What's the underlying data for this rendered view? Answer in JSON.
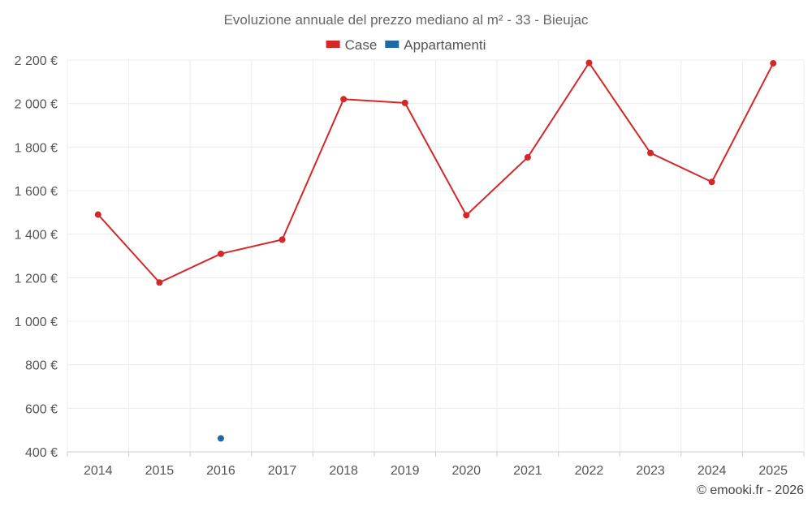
{
  "chart_data": {
    "type": "line",
    "title": "Evoluzione annuale del prezzo mediano al m² - 33 - Bieujac",
    "categories": [
      "2014",
      "2015",
      "2016",
      "2017",
      "2018",
      "2019",
      "2020",
      "2021",
      "2022",
      "2023",
      "2024",
      "2025"
    ],
    "series": [
      {
        "name": "Case",
        "color": "#d62728",
        "values": [
          1490,
          1178,
          1310,
          1375,
          2020,
          2003,
          1487,
          1753,
          2187,
          1773,
          1640,
          2185
        ]
      },
      {
        "name": "Appartamenti",
        "color": "#1f6aa5",
        "values": [
          null,
          null,
          462,
          null,
          null,
          null,
          null,
          null,
          null,
          null,
          null,
          null
        ]
      }
    ],
    "ylim": [
      400,
      2200
    ],
    "yticks": [
      400,
      600,
      800,
      1000,
      1200,
      1400,
      1600,
      1800,
      2000,
      2200
    ],
    "ytick_labels": [
      "400 €",
      "600 €",
      "800 €",
      "1 000 €",
      "1 200 €",
      "1 400 €",
      "1 600 €",
      "1 800 €",
      "2 000 €",
      "2 200 €"
    ],
    "grid": true,
    "legend_position": "top-center"
  },
  "credit": "© emooki.fr - 2026"
}
